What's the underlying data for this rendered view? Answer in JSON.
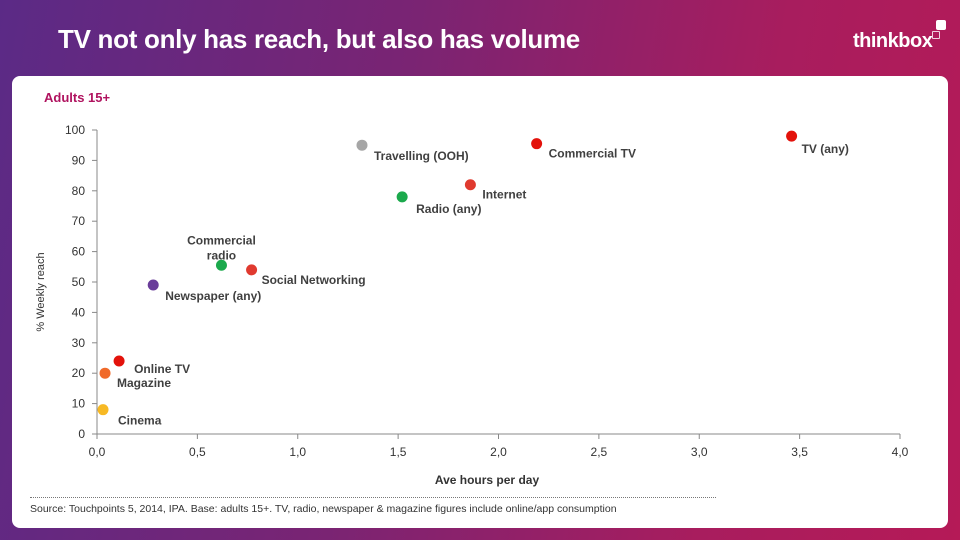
{
  "header": {
    "title": "TV not only has reach, but also has volume",
    "logo": "thinkbox"
  },
  "subtitle": "Adults 15+",
  "source": "Source: Touchpoints 5,  2014, IPA.   Base: adults 15+.  TV, radio, newspaper & magazine figures include online/app consumption",
  "chart_data": {
    "type": "scatter",
    "xlabel": "Ave hours per day",
    "ylabel": "% Weekly reach",
    "xlim": [
      0,
      4
    ],
    "ylim": [
      0,
      100
    ],
    "x_ticks": [
      "0,0",
      "0,5",
      "1,0",
      "1,5",
      "2,0",
      "2,5",
      "3,0",
      "3,5",
      "4,0"
    ],
    "y_ticks": [
      "0",
      "10",
      "20",
      "30",
      "40",
      "50",
      "60",
      "70",
      "80",
      "90",
      "100"
    ],
    "grid": false,
    "legend": "none",
    "points": [
      {
        "label": "TV (any)",
        "x": 3.46,
        "y": 98,
        "color": "#e3120b"
      },
      {
        "label": "Commercial TV",
        "x": 2.19,
        "y": 95.5,
        "color": "#e3120b"
      },
      {
        "label": "Travelling (OOH)",
        "x": 1.32,
        "y": 95,
        "color": "#a6a6a6"
      },
      {
        "label": "Internet",
        "x": 1.86,
        "y": 82,
        "color": "#e03a2f"
      },
      {
        "label": "Radio (any)",
        "x": 1.52,
        "y": 78,
        "color": "#1ba94c"
      },
      {
        "label": "Commercial radio",
        "x": 0.62,
        "y": 55.5,
        "color": "#1ba94c"
      },
      {
        "label": "Social Networking",
        "x": 0.77,
        "y": 54,
        "color": "#e03a2f"
      },
      {
        "label": "Newspaper (any)",
        "x": 0.28,
        "y": 49,
        "color": "#6a3d9a"
      },
      {
        "label": "Online TV",
        "x": 0.11,
        "y": 24,
        "color": "#e3120b"
      },
      {
        "label": "Magazine",
        "x": 0.04,
        "y": 20,
        "color": "#f06a2a"
      },
      {
        "label": "Cinema",
        "x": 0.03,
        "y": 8,
        "color": "#f7b924"
      }
    ]
  }
}
